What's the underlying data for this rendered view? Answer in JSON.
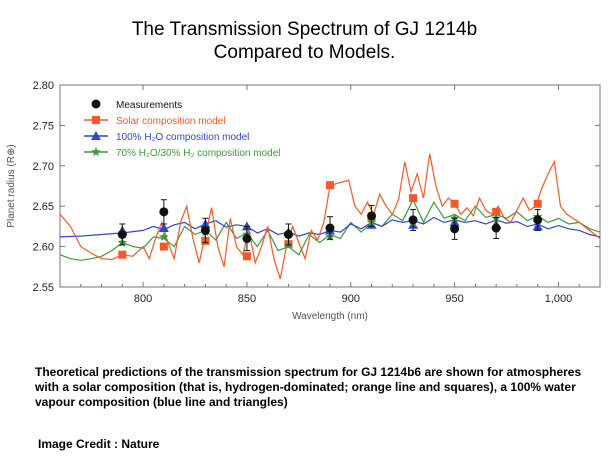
{
  "title_line1": "The Transmission Spectrum of GJ 1214b",
  "title_line2": "Compared to Models.",
  "caption": "Theoretical predictions of the transmission spectrum for GJ 1214b6 are shown for atmospheres with a solar composition (that is, hydrogen-dominated; orange line and squares), a 100% water vapour composition (blue line and triangles)",
  "credit": "Image Credit : Nature",
  "chart_data": {
    "type": "scatter",
    "title": "",
    "xlabel": "Wavelength (nm)",
    "ylabel": "Planet radius (R⊕)",
    "xlim": [
      760,
      1020
    ],
    "ylim": [
      2.55,
      2.8
    ],
    "x_ticks": [
      800,
      850,
      900,
      950,
      1000
    ],
    "x_tick_labels": [
      "800",
      "850",
      "900",
      "950",
      "1,000"
    ],
    "y_ticks": [
      2.55,
      2.6,
      2.65,
      2.7,
      2.75,
      2.8
    ],
    "y_tick_labels": [
      "2.55",
      "2.60",
      "2.65",
      "2.70",
      "2.75",
      "2.80"
    ],
    "legend": [
      "Measurements",
      "Solar composition model",
      "100% H₂O composition model",
      "70% H₂O/30% H₂ composition model"
    ],
    "legend_position": "top-left",
    "colors": {
      "measurements": "#111111",
      "solar": "#f05a2a",
      "water": "#3347c9",
      "mixed": "#3f9a3c",
      "axis": "#777777"
    },
    "measurements": {
      "x": [
        790,
        810,
        830,
        850,
        870,
        890,
        910,
        930,
        950,
        970,
        990
      ],
      "y": [
        2.615,
        2.643,
        2.62,
        2.61,
        2.615,
        2.623,
        2.638,
        2.633,
        2.622,
        2.623,
        2.633
      ],
      "err": [
        0.013,
        0.015,
        0.015,
        0.015,
        0.013,
        0.014,
        0.013,
        0.013,
        0.013,
        0.013,
        0.013
      ]
    },
    "solar_points": {
      "x": [
        790,
        810,
        830,
        850,
        870,
        890,
        910,
        930,
        950,
        970,
        990
      ],
      "y": [
        2.59,
        2.6,
        2.607,
        2.588,
        2.603,
        2.676,
        2.637,
        2.66,
        2.653,
        2.643,
        2.653
      ]
    },
    "water_points": {
      "x": [
        790,
        810,
        830,
        850,
        870,
        890,
        910,
        930,
        950,
        970,
        990
      ],
      "y": [
        2.62,
        2.623,
        2.628,
        2.625,
        2.618,
        2.62,
        2.627,
        2.627,
        2.63,
        2.627,
        2.625
      ]
    },
    "mixed_points": {
      "x": [
        790,
        810,
        830,
        850,
        870,
        890,
        910,
        930,
        950,
        970,
        990
      ],
      "y": [
        2.605,
        2.612,
        2.618,
        2.615,
        2.602,
        2.612,
        2.63,
        2.63,
        2.635,
        2.635,
        2.637
      ]
    },
    "solar_line": {
      "x": [
        760,
        765,
        770,
        775,
        780,
        785,
        790,
        795,
        800,
        803,
        806,
        809,
        812,
        815,
        818,
        821,
        824,
        827,
        830,
        833,
        836,
        839,
        842,
        845,
        848,
        851,
        854,
        857,
        860,
        863,
        866,
        869,
        872,
        875,
        878,
        881,
        884,
        887,
        890,
        893,
        896,
        899,
        902,
        905,
        908,
        911,
        914,
        917,
        920,
        923,
        926,
        929,
        932,
        935,
        938,
        941,
        944,
        947,
        950,
        953,
        956,
        959,
        962,
        965,
        968,
        971,
        974,
        977,
        980,
        983,
        986,
        989,
        992,
        995,
        998,
        1001,
        1004,
        1007,
        1010,
        1015,
        1020
      ],
      "y": [
        2.64,
        2.625,
        2.6,
        2.592,
        2.585,
        2.584,
        2.59,
        2.588,
        2.6,
        2.585,
        2.61,
        2.63,
        2.605,
        2.585,
        2.63,
        2.65,
        2.61,
        2.58,
        2.615,
        2.648,
        2.6,
        2.575,
        2.635,
        2.6,
        2.59,
        2.62,
        2.58,
        2.6,
        2.625,
        2.585,
        2.56,
        2.6,
        2.625,
        2.605,
        2.585,
        2.62,
        2.608,
        2.63,
        2.675,
        2.678,
        2.68,
        2.682,
        2.65,
        2.64,
        2.655,
        2.64,
        2.665,
        2.65,
        2.64,
        2.658,
        2.705,
        2.668,
        2.69,
        2.66,
        2.715,
        2.675,
        2.65,
        2.66,
        2.653,
        2.64,
        2.648,
        2.638,
        2.66,
        2.645,
        2.64,
        2.65,
        2.635,
        2.63,
        2.645,
        2.66,
        2.645,
        2.65,
        2.672,
        2.69,
        2.705,
        2.65,
        2.64,
        2.635,
        2.63,
        2.62,
        2.61
      ]
    },
    "water_line": {
      "x": [
        760,
        770,
        780,
        790,
        800,
        805,
        810,
        815,
        820,
        825,
        830,
        835,
        840,
        845,
        850,
        855,
        860,
        865,
        870,
        875,
        880,
        885,
        890,
        895,
        900,
        905,
        910,
        915,
        920,
        925,
        930,
        935,
        940,
        945,
        950,
        955,
        960,
        965,
        970,
        975,
        980,
        985,
        990,
        995,
        1000,
        1005,
        1010,
        1015,
        1020
      ],
      "y": [
        2.612,
        2.613,
        2.615,
        2.617,
        2.62,
        2.625,
        2.621,
        2.627,
        2.63,
        2.622,
        2.628,
        2.632,
        2.624,
        2.627,
        2.625,
        2.617,
        2.622,
        2.615,
        2.618,
        2.613,
        2.617,
        2.615,
        2.62,
        2.618,
        2.628,
        2.622,
        2.63,
        2.625,
        2.633,
        2.63,
        2.632,
        2.628,
        2.636,
        2.63,
        2.633,
        2.63,
        2.632,
        2.628,
        2.633,
        2.629,
        2.631,
        2.625,
        2.628,
        2.622,
        2.626,
        2.622,
        2.62,
        2.615,
        2.612
      ]
    },
    "mixed_line": {
      "x": [
        760,
        765,
        770,
        775,
        780,
        785,
        790,
        795,
        800,
        805,
        810,
        815,
        820,
        825,
        830,
        835,
        840,
        845,
        850,
        855,
        860,
        865,
        870,
        875,
        880,
        885,
        890,
        895,
        900,
        905,
        910,
        915,
        920,
        925,
        930,
        935,
        940,
        945,
        950,
        955,
        960,
        965,
        970,
        975,
        980,
        985,
        990,
        995,
        1000,
        1005,
        1010,
        1015,
        1020
      ],
      "y": [
        2.59,
        2.585,
        2.583,
        2.585,
        2.588,
        2.595,
        2.605,
        2.6,
        2.598,
        2.612,
        2.61,
        2.6,
        2.625,
        2.615,
        2.62,
        2.608,
        2.63,
        2.61,
        2.617,
        2.6,
        2.62,
        2.595,
        2.6,
        2.59,
        2.615,
        2.605,
        2.615,
        2.61,
        2.63,
        2.618,
        2.63,
        2.625,
        2.64,
        2.632,
        2.658,
        2.63,
        2.655,
        2.635,
        2.64,
        2.632,
        2.65,
        2.636,
        2.64,
        2.635,
        2.643,
        2.632,
        2.638,
        2.63,
        2.635,
        2.628,
        2.63,
        2.622,
        2.618
      ]
    }
  }
}
